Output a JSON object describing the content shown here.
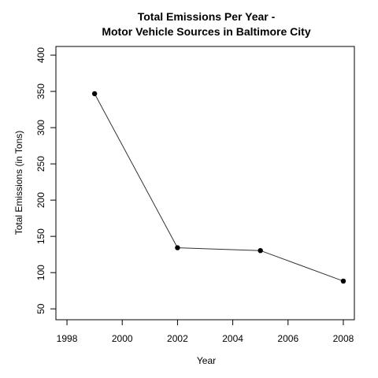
{
  "chart_data": {
    "type": "line",
    "title_line1": "Total Emissions Per Year -",
    "title_line2": "Motor Vehicle Sources in Baltimore City",
    "xlabel": "Year",
    "ylabel": "Total Emissions (in Tons)",
    "x": [
      1999,
      2002,
      2005,
      2008
    ],
    "y": [
      346.8,
      134.3,
      130.4,
      88.3
    ],
    "xlim": [
      1997.6,
      2008.4
    ],
    "ylim": [
      35,
      412
    ],
    "xticks": [
      1998,
      2000,
      2002,
      2004,
      2006,
      2008
    ],
    "yticks": [
      50,
      100,
      150,
      200,
      250,
      300,
      350,
      400
    ],
    "grid": false,
    "line_color": "#333333",
    "point_color": "#000000"
  }
}
